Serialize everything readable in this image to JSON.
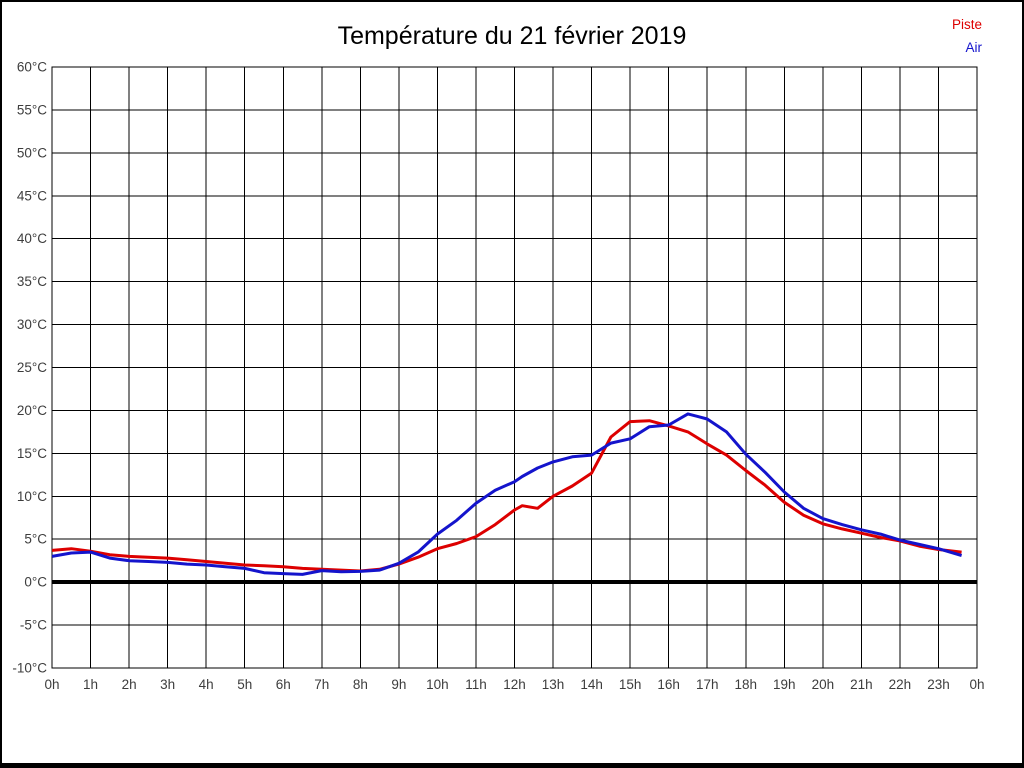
{
  "title": "Température du 21 février 2019",
  "legend": {
    "items": [
      {
        "label": "Piste",
        "color": "#dd0000"
      },
      {
        "label": "Air",
        "color": "#1414cc"
      }
    ]
  },
  "chart_data": {
    "type": "line",
    "title": "Température du 21 février 2019",
    "xlabel": "",
    "ylabel": "",
    "x_unit": "hours",
    "xlim": [
      0,
      24
    ],
    "ylim": [
      -10,
      60
    ],
    "grid": true,
    "grid_color": "#000000",
    "zero_line": {
      "value": 0,
      "color": "#000000",
      "width": 4
    },
    "x_tick_step_hours": 1,
    "x_tick_labels": [
      "0h",
      "1h",
      "2h",
      "3h",
      "4h",
      "5h",
      "6h",
      "7h",
      "8h",
      "9h",
      "10h",
      "11h",
      "12h",
      "13h",
      "14h",
      "15h",
      "16h",
      "17h",
      "18h",
      "19h",
      "20h",
      "21h",
      "22h",
      "23h",
      "0h"
    ],
    "y_tick_step": 5,
    "y_tick_labels": [
      "60°C",
      "55°C",
      "50°C",
      "45°C",
      "40°C",
      "35°C",
      "30°C",
      "25°C",
      "20°C",
      "15°C",
      "10°C",
      "5°C",
      "0°C",
      "-5°C",
      "-10°C"
    ],
    "legend_position": "top-right",
    "x": [
      0,
      0.5,
      1,
      1.5,
      2,
      2.5,
      3,
      3.5,
      4,
      4.5,
      5,
      5.5,
      6,
      6.5,
      7,
      7.5,
      8,
      8.5,
      9,
      9.5,
      10,
      10.5,
      11,
      11.5,
      12,
      12.2,
      12.6,
      13,
      13.5,
      14,
      14.5,
      15,
      15.5,
      16,
      16.5,
      16.75,
      17,
      17.5,
      18,
      18.5,
      19,
      19.5,
      20,
      20.5,
      21,
      21.5,
      22,
      22.5,
      23,
      23.6
    ],
    "series": [
      {
        "name": "Piste",
        "color": "#dd0000",
        "line_width": 3,
        "values": [
          3.7,
          3.9,
          3.6,
          3.2,
          3.0,
          2.9,
          2.8,
          2.6,
          2.4,
          2.2,
          2.0,
          1.9,
          1.8,
          1.6,
          1.5,
          1.4,
          1.3,
          1.5,
          2.1,
          2.9,
          3.9,
          4.5,
          5.3,
          6.7,
          8.4,
          8.9,
          8.6,
          10.0,
          11.2,
          12.7,
          16.9,
          18.7,
          18.8,
          18.2,
          17.5,
          16.8,
          16.1,
          14.8,
          13.0,
          11.3,
          9.3,
          7.8,
          6.8,
          6.2,
          5.7,
          5.2,
          4.8,
          4.2,
          3.8,
          3.5
        ]
      },
      {
        "name": "Air",
        "color": "#1414cc",
        "line_width": 3,
        "values": [
          3.0,
          3.4,
          3.5,
          2.8,
          2.5,
          2.4,
          2.3,
          2.1,
          2.0,
          1.8,
          1.6,
          1.1,
          1.0,
          0.9,
          1.35,
          1.2,
          1.25,
          1.4,
          2.2,
          3.5,
          5.6,
          7.2,
          9.2,
          10.7,
          11.7,
          12.3,
          13.3,
          14.0,
          14.6,
          14.8,
          16.2,
          16.7,
          18.1,
          18.3,
          19.6,
          19.3,
          19.0,
          17.5,
          14.9,
          12.8,
          10.5,
          8.6,
          7.4,
          6.7,
          6.1,
          5.6,
          4.9,
          4.4,
          3.9,
          3.1
        ]
      }
    ]
  }
}
